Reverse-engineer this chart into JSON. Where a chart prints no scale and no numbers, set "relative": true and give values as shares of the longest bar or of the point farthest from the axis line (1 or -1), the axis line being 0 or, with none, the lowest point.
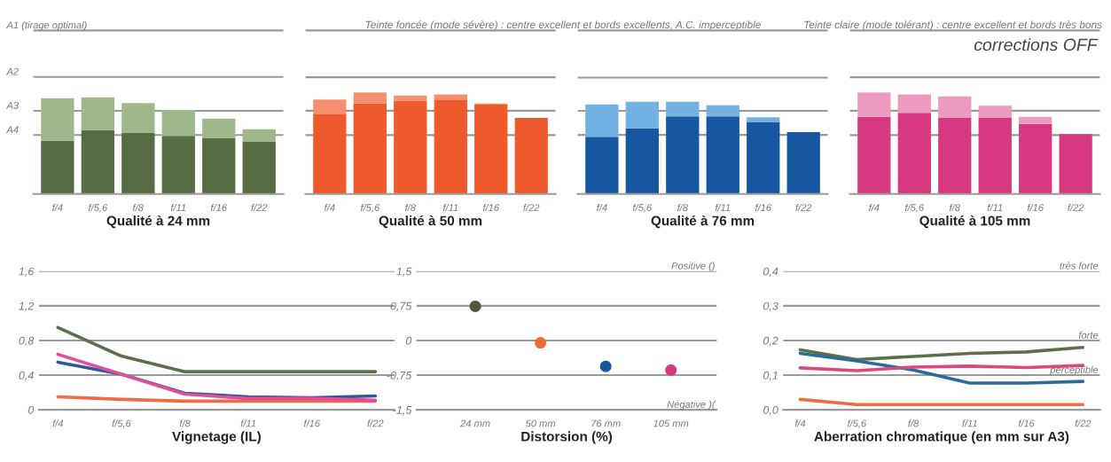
{
  "chart_data": [
    {
      "type": "bar",
      "stacked": true,
      "relative": true,
      "xlabel": "Qualité à 24 mm",
      "categories": [
        "f/4",
        "f/5,6",
        "f/8",
        "f/11",
        "f/16",
        "f/22"
      ],
      "series": [
        {
          "color": "#566c45",
          "values": [
            0.55,
            0.66,
            0.63,
            0.6,
            0.58,
            0.54
          ]
        },
        {
          "color": "#9db88a",
          "values": [
            0.44,
            0.34,
            0.31,
            0.27,
            0.2,
            0.13
          ]
        }
      ],
      "ref_lines": [
        {
          "axis": "y",
          "value": 1.69,
          "label": "A1 (tirage optimal)"
        },
        {
          "axis": "y",
          "value": 1.21,
          "label": "A2"
        },
        {
          "axis": "y",
          "value": 0.86,
          "label": "A3"
        },
        {
          "axis": "y",
          "value": 0.61,
          "label": "A4"
        }
      ],
      "annotations": [
        "Teinte foncée (mode sévère) : centre excellent et bords excellents, A.C. imperceptible",
        "Teinte claire (mode tolérant) : centre excellent et bords très bons"
      ]
    },
    {
      "type": "bar",
      "stacked": true,
      "relative": true,
      "xlabel": "Qualité à 50 mm",
      "categories": [
        "f/4",
        "f/5,6",
        "f/8",
        "f/11",
        "f/16",
        "f/22"
      ],
      "series": [
        {
          "color": "#ef5a2c",
          "values": [
            0.79,
            0.89,
            0.92,
            0.93,
            0.88,
            0.75
          ]
        },
        {
          "color": "#f4906f",
          "values": [
            0.14,
            0.11,
            0.05,
            0.05,
            0.01,
            0
          ]
        }
      ],
      "ref_lines": [
        {
          "axis": "y",
          "value": 1.61
        },
        {
          "axis": "y",
          "value": 1.15
        },
        {
          "axis": "y",
          "value": 0.82
        },
        {
          "axis": "y",
          "value": 0.58
        }
      ]
    },
    {
      "type": "bar",
      "stacked": true,
      "relative": true,
      "xlabel": "Qualité à 76 mm",
      "categories": [
        "f/4",
        "f/5,6",
        "f/8",
        "f/11",
        "f/16",
        "f/22"
      ],
      "series": [
        {
          "color": "#17579f",
          "values": [
            0.62,
            0.71,
            0.84,
            0.84,
            0.78,
            0.67
          ]
        },
        {
          "color": "#72b1e2",
          "values": [
            0.35,
            0.29,
            0.16,
            0.12,
            0.05,
            0
          ]
        }
      ],
      "ref_lines": [
        {
          "axis": "y",
          "value": 1.77
        },
        {
          "axis": "y",
          "value": 1.26
        },
        {
          "axis": "y",
          "value": 0.9
        },
        {
          "axis": "y",
          "value": 0.64
        }
      ]
    },
    {
      "type": "bar",
      "stacked": true,
      "relative": true,
      "xlabel": "Qualité à 105 mm",
      "categories": [
        "f/4",
        "f/5,6",
        "f/8",
        "f/11",
        "f/16",
        "f/22"
      ],
      "series": [
        {
          "color": "#d6397f",
          "values": [
            0.76,
            0.8,
            0.75,
            0.75,
            0.69,
            0.59
          ]
        },
        {
          "color": "#ec9bc0",
          "values": [
            0.24,
            0.18,
            0.21,
            0.12,
            0.07,
            0
          ]
        }
      ],
      "ref_lines": [
        {
          "axis": "y",
          "value": 1.61
        },
        {
          "axis": "y",
          "value": 1.15
        },
        {
          "axis": "y",
          "value": 0.82
        },
        {
          "axis": "y",
          "value": 0.58
        }
      ],
      "annotations": [
        "corrections OFF"
      ]
    },
    {
      "type": "line",
      "xlabel": "Vignetage (IL)",
      "grid": "y",
      "categories": [
        "f/4",
        "f/5,6",
        "f/8",
        "f/11",
        "f/16",
        "f/22"
      ],
      "ylim": [
        0,
        1.6
      ],
      "yticks": [
        {
          "value": 0,
          "label": "0"
        },
        {
          "value": 0.4,
          "label": "0,4"
        },
        {
          "value": 0.8,
          "label": "0,8"
        },
        {
          "value": 1.2,
          "label": "1,2"
        },
        {
          "value": 1.6,
          "label": "1,6"
        }
      ],
      "series": [
        {
          "color": "#5b7048",
          "values": [
            0.95,
            0.62,
            0.44,
            0.44,
            0.44,
            0.44
          ]
        },
        {
          "color": "#ef6a45",
          "values": [
            0.15,
            0.12,
            0.1,
            0.1,
            0.1,
            0.1
          ]
        },
        {
          "color": "#2d5a9c",
          "values": [
            0.55,
            0.41,
            0.19,
            0.15,
            0.14,
            0.16
          ]
        },
        {
          "color": "#e0509a",
          "values": [
            0.64,
            0.41,
            0.18,
            0.13,
            0.13,
            0.11
          ]
        }
      ]
    },
    {
      "type": "scatter",
      "xlabel": "Distorsion (%)",
      "grid": "y",
      "marker": "circle",
      "categories": [
        "24 mm",
        "50 mm",
        "76 mm",
        "105 mm"
      ],
      "ylim": [
        -1.5,
        1.5
      ],
      "yticks": [
        {
          "value": -1.5,
          "label": "-1,5"
        },
        {
          "value": -0.75,
          "label": "-0,75"
        },
        {
          "value": 0,
          "label": "0"
        },
        {
          "value": 0.75,
          "label": "0,75"
        },
        {
          "value": 1.5,
          "label": "1,5"
        }
      ],
      "values": [
        0.74,
        -0.05,
        -0.56,
        -0.64
      ],
      "colors": [
        "#4e5a3c",
        "#ef6a35",
        "#17579f",
        "#d6397f"
      ],
      "ref_lines": [
        {
          "axis": "y",
          "value": 0,
          "color": "#555555"
        }
      ],
      "annotations": [
        "Positive ()",
        "Négative )("
      ]
    },
    {
      "type": "line",
      "xlabel": "Aberration chromatique (en mm sur A3)",
      "grid": "y",
      "categories": [
        "f/4",
        "f/5,6",
        "f/8",
        "f/11",
        "f/16",
        "f/22"
      ],
      "ylim": [
        0,
        0.4
      ],
      "yticks": [
        {
          "value": 0,
          "label": "0,0"
        },
        {
          "value": 0.1,
          "label": "0,1"
        },
        {
          "value": 0.2,
          "label": "0,2"
        },
        {
          "value": 0.3,
          "label": "0,3"
        },
        {
          "value": 0.4,
          "label": "0,4"
        }
      ],
      "series": [
        {
          "color": "#5b7048",
          "values": [
            0.173,
            0.145,
            0.154,
            0.163,
            0.167,
            0.18
          ]
        },
        {
          "color": "#ef6a45",
          "values": [
            0.03,
            0.015,
            0.015,
            0.015,
            0.015,
            0.015
          ]
        },
        {
          "color": "#2d6a9c",
          "values": [
            0.163,
            0.141,
            0.115,
            0.077,
            0.077,
            0.082
          ]
        },
        {
          "color": "#e0457f",
          "values": [
            0.121,
            0.113,
            0.123,
            0.126,
            0.122,
            0.128
          ]
        }
      ],
      "annotations": [
        "très forte",
        "forte",
        "perceptible"
      ]
    }
  ]
}
